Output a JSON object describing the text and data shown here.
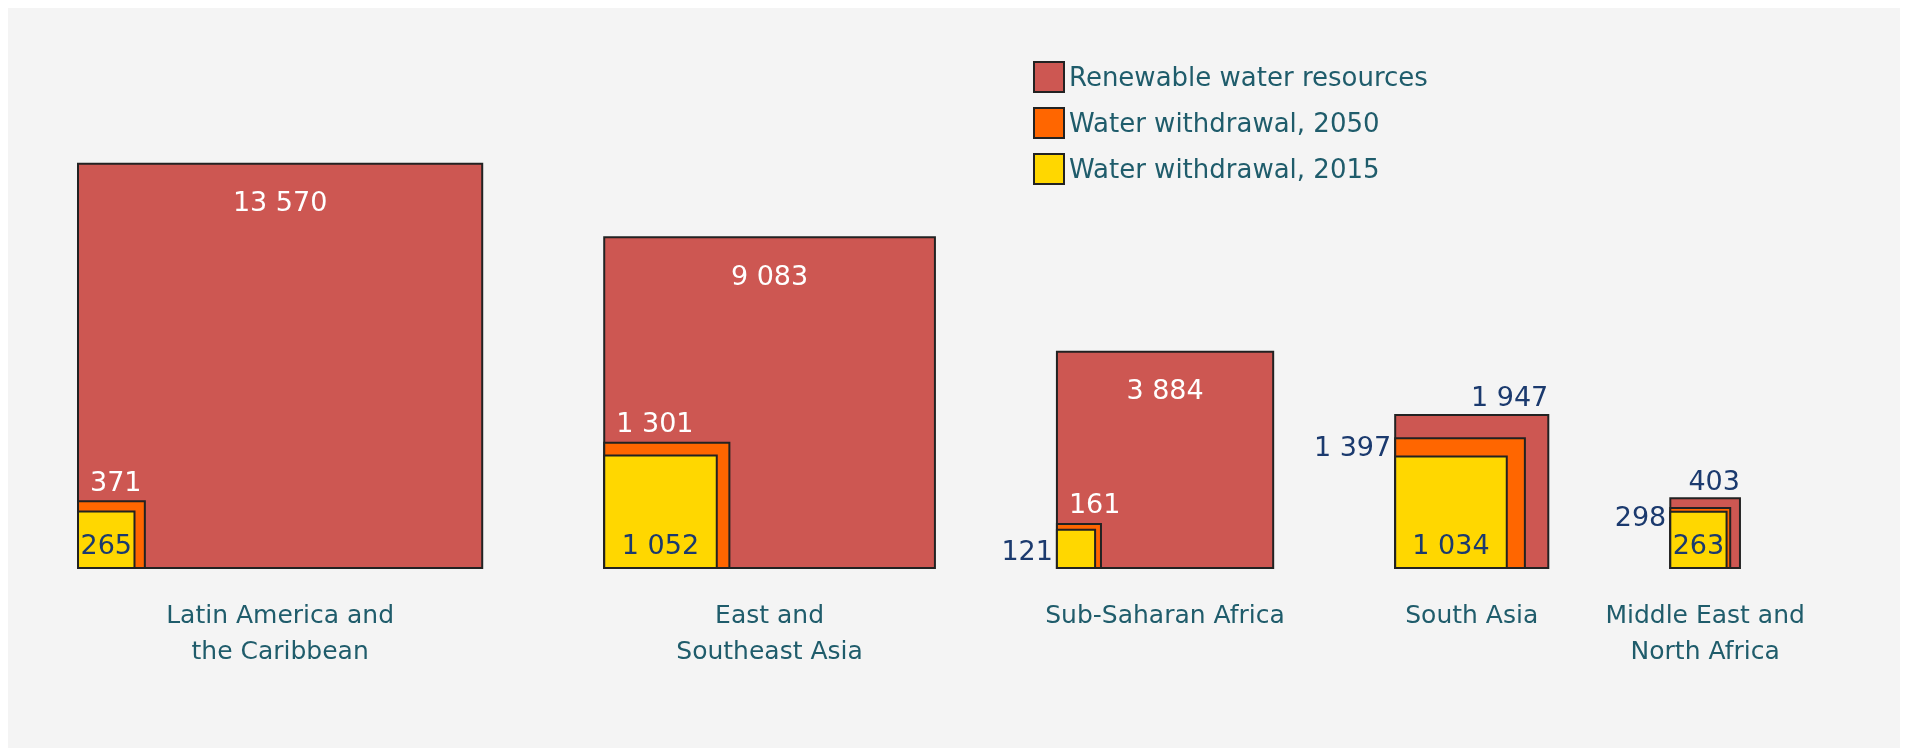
{
  "chart_data": {
    "type": "other",
    "legend": "top right",
    "categories": [
      "Latin America and the Caribbean",
      "East and Southeast Asia",
      "Sub-Saharan Africa",
      "South Asia",
      "Middle East and North Africa"
    ],
    "series": [
      {
        "name": "Renewable water resources",
        "color": "#cd5752",
        "values": [
          13570,
          9083,
          3884,
          1947,
          403
        ],
        "value_labels": [
          "13 570",
          "9 083",
          "3 884",
          "1 947",
          "403"
        ]
      },
      {
        "name": "Water withdrawal, 2050",
        "color": "#ff6600",
        "values": [
          371,
          1301,
          161,
          1397,
          298
        ],
        "value_labels": [
          "371",
          "1 301",
          "161",
          "1 397",
          "298"
        ]
      },
      {
        "name": "Water withdrawal, 2015",
        "color": "#ffd700",
        "values": [
          265,
          1052,
          121,
          1034,
          263
        ],
        "value_labels": [
          "265",
          "1 052",
          "121",
          "1 034",
          "263"
        ]
      }
    ]
  }
}
